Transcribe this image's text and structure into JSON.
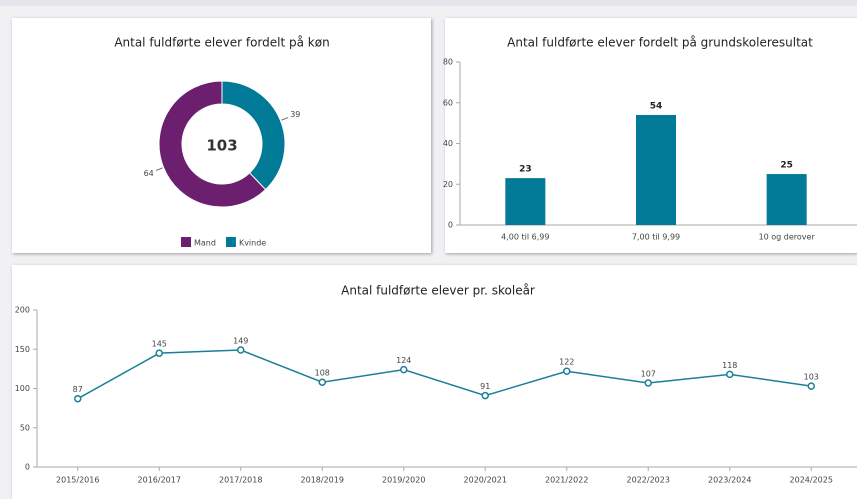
{
  "chart_data": [
    {
      "type": "pie",
      "donut": true,
      "title": "Antal fuldførte elever fordelt på køn",
      "center_label": 103,
      "categories": [
        "Mand",
        "Kvinde"
      ],
      "values": [
        64,
        39
      ],
      "colors": [
        "#6b1f6e",
        "#007a96"
      ],
      "legend": "bottom"
    },
    {
      "type": "bar",
      "title": "Antal fuldførte elever fordelt på grundskoleresultat",
      "categories": [
        "4,00 til 6,99",
        "7,00 til 9,99",
        "10 og derover"
      ],
      "values": [
        23,
        54,
        25
      ],
      "color": "#007a96",
      "ylim": [
        0,
        80
      ],
      "yticks": [
        0,
        20,
        40,
        60,
        80
      ],
      "grid": false
    },
    {
      "type": "line",
      "title": "Antal fuldførte elever pr. skoleår",
      "categories": [
        "2015/2016",
        "2016/2017",
        "2017/2018",
        "2018/2019",
        "2019/2020",
        "2020/2021",
        "2021/2022",
        "2022/2023",
        "2023/2024",
        "2024/2025"
      ],
      "values": [
        87,
        145,
        149,
        108,
        124,
        91,
        122,
        107,
        118,
        103
      ],
      "color": "#1b7f99",
      "ylim": [
        0,
        200
      ],
      "yticks": [
        0,
        50,
        100,
        150,
        200
      ],
      "grid": false
    }
  ]
}
